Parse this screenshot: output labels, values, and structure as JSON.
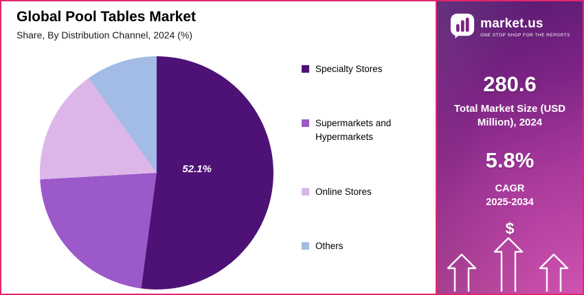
{
  "header": {
    "title": "Global Pool Tables Market",
    "subtitle": "Share, By Distribution Channel, 2024 (%)"
  },
  "chart_data": {
    "type": "pie",
    "title": "Global Pool Tables Market",
    "subtitle": "Share, By Distribution Channel, 2024 (%)",
    "unit": "percent",
    "legend_position": "right",
    "start_angle": "top-clockwise",
    "slices": [
      {
        "label": "Specialty Stores",
        "value": 52.1,
        "displayed_label": "52.1%",
        "color": "#4e1277"
      },
      {
        "label": "Supermarkets and Hypermarkets",
        "value": 22.0,
        "color": "#9b59c9"
      },
      {
        "label": "Online Stores",
        "value": 16.0,
        "color": "#ddb6e9"
      },
      {
        "label": "Others",
        "value": 9.9,
        "color": "#a3bce6"
      }
    ],
    "annotations": [
      {
        "text": "52.1%",
        "slice": "Specialty Stores"
      }
    ]
  },
  "sidebar": {
    "brand": {
      "name": "market.us",
      "tagline": "ONE STOP SHOP FOR THE REPORTS"
    },
    "market_size": {
      "value": "280.6",
      "label": "Total Market Size (USD Million), 2024"
    },
    "cagr": {
      "value": "5.8%",
      "label_line1": "CAGR",
      "label_line2": "2025-2034"
    },
    "dollar_symbol": "$",
    "colors": {
      "gradient_top": "#521a6e",
      "gradient_bottom": "#cf52ae"
    }
  },
  "frame": {
    "border_color": "#e3256f"
  }
}
